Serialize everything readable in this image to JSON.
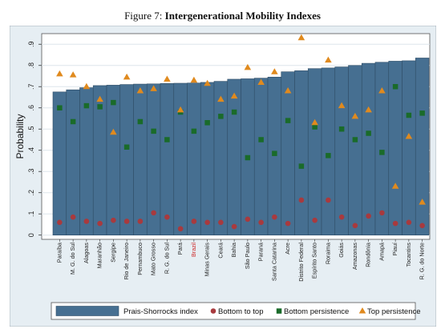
{
  "caption": {
    "prefix": "Figure 7:",
    "title": "Intergenerational Mobility Indexes"
  },
  "colors": {
    "outer_bg": "#e6eef3",
    "plot_bg": "#ffffff",
    "bar": "#466f91",
    "bar_edge": "#2f4d66",
    "grid": "#dde5eb",
    "bottom_to_top": "#a83a3e",
    "bottom_persistence": "#1a6b2a",
    "top_persistence": "#e08a1e",
    "highlight_label": "#cc2222"
  },
  "chart_data": {
    "type": "bar",
    "ylabel": "Probability",
    "ylim": [
      -0.02,
      0.95
    ],
    "yticks": [
      0,
      0.1,
      0.2,
      0.3,
      0.4,
      0.5,
      0.6,
      0.7,
      0.8,
      0.9
    ],
    "ytick_labels": [
      "0",
      ".1",
      ".2",
      ".3",
      ".4",
      ".5",
      ".6",
      ".7",
      ".8",
      ".9"
    ],
    "highlight_category": "Brazil",
    "grid": true,
    "legend_position": "bottom",
    "categories": [
      "Paraíba",
      "M. G. do Sul",
      "Alagoas",
      "Maranhão",
      "Sergipe",
      "Rio de Janeiro",
      "Pernambuco",
      "Mato Grosso",
      "R. G. do Sul",
      "Pará",
      "Brazil",
      "Minas Gerais",
      "Ceará",
      "Bahia",
      "São Paulo",
      "Paraná",
      "Santa Catarina",
      "Acre",
      "Distrito Federal",
      "Espírito Santo",
      "Roraima",
      "Goiás",
      "Amazonas",
      "Rondônia",
      "Amapá",
      "Piauí",
      "Tocantins",
      "R. G. do Norte"
    ],
    "series": [
      {
        "name": "Prais-Shorrocks index",
        "kind": "bar",
        "values": [
          0.675,
          0.685,
          0.695,
          0.705,
          0.707,
          0.71,
          0.712,
          0.713,
          0.715,
          0.716,
          0.717,
          0.72,
          0.725,
          0.735,
          0.737,
          0.74,
          0.745,
          0.77,
          0.775,
          0.785,
          0.788,
          0.793,
          0.8,
          0.81,
          0.815,
          0.82,
          0.822,
          0.835
        ]
      },
      {
        "name": "Bottom to top",
        "kind": "circle",
        "values": [
          0.06,
          0.085,
          0.065,
          0.055,
          0.07,
          0.065,
          0.065,
          0.105,
          0.085,
          0.03,
          0.065,
          0.06,
          0.06,
          0.04,
          0.075,
          0.06,
          0.085,
          0.055,
          0.165,
          0.07,
          0.165,
          0.085,
          0.045,
          0.09,
          0.105,
          0.055,
          0.06,
          0.045
        ]
      },
      {
        "name": "Bottom persistence",
        "kind": "square",
        "values": [
          0.6,
          0.535,
          0.61,
          0.605,
          0.625,
          0.415,
          0.535,
          0.49,
          0.45,
          0.58,
          0.49,
          0.53,
          0.56,
          0.58,
          0.365,
          0.45,
          0.385,
          0.54,
          0.325,
          0.51,
          0.375,
          0.5,
          0.45,
          0.48,
          0.39,
          0.7,
          0.565,
          0.575
        ]
      },
      {
        "name": "Top persistence",
        "kind": "triangle",
        "values": [
          0.76,
          0.755,
          0.7,
          0.64,
          0.485,
          0.745,
          0.68,
          0.69,
          0.735,
          0.59,
          0.73,
          0.715,
          0.64,
          0.655,
          0.79,
          0.72,
          0.77,
          0.68,
          0.93,
          0.53,
          0.825,
          0.61,
          0.56,
          0.59,
          0.68,
          0.23,
          0.465,
          0.155
        ]
      }
    ]
  }
}
